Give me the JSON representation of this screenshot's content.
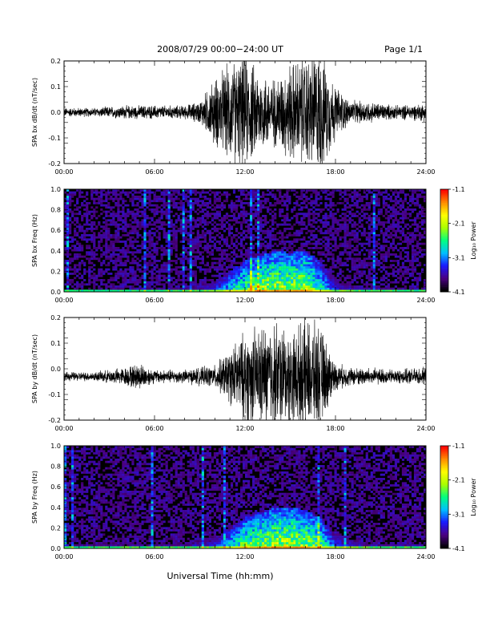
{
  "header": {
    "title": "2008/07/29  00:00−24:00 UT",
    "page": "Page 1/1"
  },
  "footer": {
    "xlabel": "Universal Time (hh:mm)"
  },
  "colors": {
    "trace": "#000000",
    "spectrogram_background": "#000000",
    "colormap": [
      "#000000",
      "#4b0082",
      "#1a1aff",
      "#00bfff",
      "#00ff7f",
      "#aaff00",
      "#ffff00",
      "#ff8c00",
      "#ff0000"
    ]
  },
  "chart_data": [
    {
      "type": "line",
      "panel": "bx-waveform",
      "ylabel": "SPA bx dB/dt (nT/sec)",
      "ylim": [
        -0.2,
        0.2
      ],
      "xlim": [
        0,
        24
      ],
      "x_ticks": [
        "00:00",
        "06:00",
        "12:00",
        "18:00",
        "24:00"
      ],
      "y_ticks": [
        "-0.2",
        "-0.1",
        "0.0",
        "0.1",
        "0.2"
      ],
      "series": [
        {
          "baseline": 0.0,
          "envelope_hours": [
            0,
            2,
            4,
            6,
            8,
            9,
            10,
            11,
            12,
            13,
            14,
            15,
            16,
            17,
            18,
            19,
            20,
            22,
            24
          ],
          "envelope_amplitude": [
            0.02,
            0.02,
            0.03,
            0.03,
            0.03,
            0.05,
            0.15,
            0.22,
            0.25,
            0.18,
            0.15,
            0.22,
            0.25,
            0.28,
            0.12,
            0.05,
            0.05,
            0.03,
            0.04
          ]
        }
      ]
    },
    {
      "type": "heatmap",
      "panel": "bx-spectrogram",
      "ylabel": "SPA bx Freq (Hz)",
      "ylim": [
        0.0,
        1.0
      ],
      "xlim": [
        0,
        24
      ],
      "x_ticks": [
        "00:00",
        "06:00",
        "12:00",
        "18:00",
        "24:00"
      ],
      "y_ticks": [
        "0.0",
        "0.2",
        "0.4",
        "0.6",
        "0.8",
        "1.0"
      ],
      "colorbar": {
        "label": "Log₁₀ Power",
        "range": [
          -4.1,
          -1.1
        ],
        "ticks": [
          "-1.1",
          "-2.1",
          "-3.1",
          "-4.1"
        ]
      },
      "activity_hours": [
        0,
        4,
        8,
        10,
        11,
        12,
        13,
        14,
        15,
        16,
        17,
        18,
        20,
        24
      ],
      "activity_level": [
        0.15,
        0.2,
        0.2,
        0.35,
        0.55,
        0.7,
        0.8,
        0.85,
        0.8,
        0.85,
        0.6,
        0.35,
        0.25,
        0.2
      ],
      "activity_top_hz": [
        0.05,
        0.05,
        0.05,
        0.1,
        0.2,
        0.3,
        0.35,
        0.4,
        0.38,
        0.4,
        0.3,
        0.1,
        0.05,
        0.05
      ]
    },
    {
      "type": "line",
      "panel": "by-waveform",
      "ylabel": "SPA by dB/dt (nT/sec)",
      "ylim": [
        -0.2,
        0.2
      ],
      "xlim": [
        0,
        24
      ],
      "x_ticks": [
        "00:00",
        "06:00",
        "12:00",
        "18:00",
        "24:00"
      ],
      "y_ticks": [
        "-0.2",
        "-0.1",
        "0.0",
        "0.1",
        "0.2"
      ],
      "series": [
        {
          "baseline": -0.03,
          "envelope_hours": [
            0,
            2,
            4,
            5,
            6,
            8,
            10,
            11,
            12,
            13,
            14,
            15,
            16,
            17,
            18,
            19,
            20,
            22,
            24
          ],
          "envelope_amplitude": [
            0.02,
            0.02,
            0.04,
            0.06,
            0.03,
            0.03,
            0.05,
            0.12,
            0.2,
            0.22,
            0.25,
            0.2,
            0.25,
            0.22,
            0.06,
            0.04,
            0.04,
            0.03,
            0.04
          ]
        }
      ]
    },
    {
      "type": "heatmap",
      "panel": "by-spectrogram",
      "ylabel": "SPA by Freq (Hz)",
      "ylim": [
        0.0,
        1.0
      ],
      "xlim": [
        0,
        24
      ],
      "x_ticks": [
        "00:00",
        "06:00",
        "12:00",
        "18:00",
        "24:00"
      ],
      "y_ticks": [
        "0.0",
        "0.2",
        "0.4",
        "0.6",
        "0.8",
        "1.0"
      ],
      "colorbar": {
        "label": "Log₁₀ Power",
        "range": [
          -4.1,
          -1.1
        ],
        "ticks": [
          "-1.1",
          "-2.1",
          "-3.1",
          "-4.1"
        ]
      },
      "activity_hours": [
        0,
        4,
        8,
        10,
        11,
        12,
        13,
        14,
        15,
        16,
        17,
        18,
        20,
        24
      ],
      "activity_level": [
        0.2,
        0.25,
        0.25,
        0.35,
        0.55,
        0.75,
        0.8,
        0.85,
        0.85,
        0.8,
        0.7,
        0.4,
        0.3,
        0.25
      ],
      "activity_top_hz": [
        0.05,
        0.06,
        0.06,
        0.1,
        0.2,
        0.3,
        0.35,
        0.4,
        0.4,
        0.38,
        0.3,
        0.12,
        0.06,
        0.05
      ]
    }
  ]
}
